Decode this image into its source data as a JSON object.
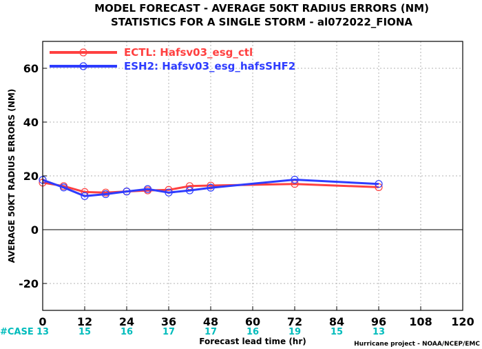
{
  "chart_data": {
    "type": "line",
    "title": "MODEL FORECAST - AVERAGE 50KT RADIUS ERRORS (NM)",
    "subtitle": "STATISTICS FOR A SINGLE STORM - al072022_FIONA",
    "xlabel": "Forecast lead time (hr)",
    "ylabel": "AVERAGE 50KT RADIUS ERRORS (NM)",
    "xlim": [
      0,
      120
    ],
    "ylim": [
      -30,
      70
    ],
    "xticks": [
      0,
      12,
      24,
      36,
      48,
      60,
      72,
      84,
      96,
      108,
      120
    ],
    "yticks": [
      -20,
      0,
      20,
      40,
      60
    ],
    "grid": true,
    "legend_position": "top-left",
    "zero_line": true,
    "series": [
      {
        "name": "ECTL: Hafsv03_esg_ctl",
        "color": "#ff4040",
        "x": [
          0,
          6,
          12,
          18,
          24,
          30,
          36,
          42,
          48,
          72,
          96
        ],
        "values": [
          17.5,
          16.2,
          14.0,
          13.8,
          14.2,
          14.6,
          14.8,
          16.2,
          16.4,
          17.0,
          15.8
        ]
      },
      {
        "name": "ESH2: Hafsv03_esg_hafsSHF2",
        "color": "#2e3cff",
        "x": [
          0,
          6,
          12,
          18,
          24,
          30,
          36,
          42,
          48,
          72,
          96
        ],
        "values": [
          18.5,
          15.7,
          12.5,
          13.2,
          14.2,
          15.1,
          13.8,
          14.6,
          15.6,
          18.6,
          17.0
        ]
      }
    ],
    "case_row": {
      "label": "#CASE",
      "hours": [
        0,
        12,
        24,
        36,
        48,
        60,
        72,
        84,
        96
      ],
      "counts": [
        "13",
        "15",
        "16",
        "17",
        "17",
        "16",
        "19",
        "15",
        "13"
      ],
      "color": "#00bcbc",
      "label_color": "#00bcbc"
    },
    "credit": "Hurricane project - NOAA/NCEP/EMC"
  }
}
